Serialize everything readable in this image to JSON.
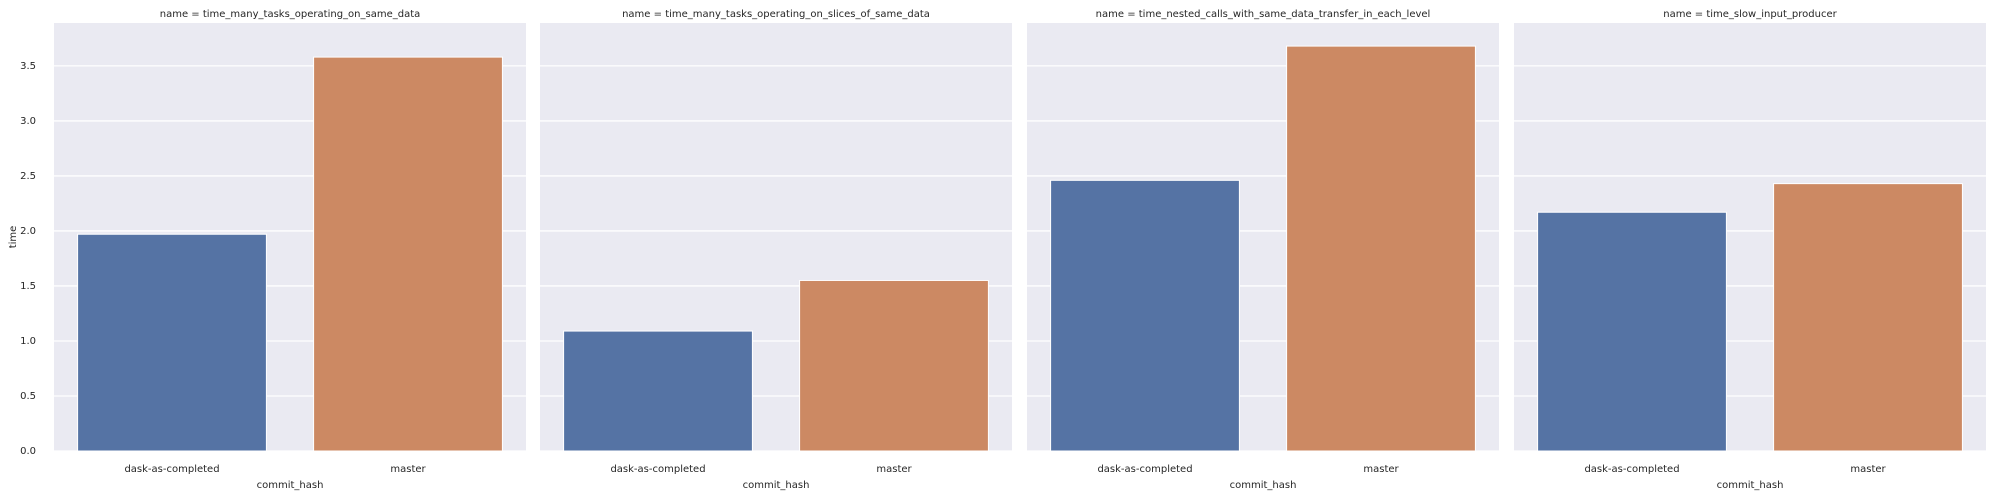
{
  "chart_data": [
    {
      "type": "bar",
      "title": "name = time_many_tasks_operating_on_same_data",
      "categories": [
        "dask-as-completed",
        "master"
      ],
      "values": [
        1.97,
        3.58
      ],
      "colors": [
        "#5573a4",
        "#cc8963"
      ],
      "x_label": "commit_hash",
      "y_label": "time",
      "ylim": [
        0,
        3.89
      ],
      "yticks": [
        {
          "value": 0,
          "label": "0.0"
        },
        {
          "value": 0.5,
          "label": "0.5"
        },
        {
          "value": 1,
          "label": "1.0"
        },
        {
          "value": 1.5,
          "label": "1.5"
        },
        {
          "value": 2,
          "label": "2.0"
        },
        {
          "value": 2.5,
          "label": "2.5"
        },
        {
          "value": 3,
          "label": "3.0"
        },
        {
          "value": 3.5,
          "label": "3.5"
        }
      ],
      "grid": true
    },
    {
      "type": "bar",
      "title": "name = time_many_tasks_operating_on_slices_of_same_data",
      "categories": [
        "dask-as-completed",
        "master"
      ],
      "values": [
        1.09,
        1.55
      ],
      "colors": [
        "#5573a4",
        "#cc8963"
      ],
      "x_label": "commit_hash"
    },
    {
      "type": "bar",
      "title": "name = time_nested_calls_with_same_data_transfer_in_each_level",
      "categories": [
        "dask-as-completed",
        "master"
      ],
      "values": [
        2.46,
        3.68
      ],
      "colors": [
        "#5573a4",
        "#cc8963"
      ],
      "x_label": "commit_hash"
    },
    {
      "type": "bar",
      "title": "name = time_slow_input_producer",
      "categories": [
        "dask-as-completed",
        "master"
      ],
      "values": [
        2.17,
        2.43
      ],
      "colors": [
        "#5573a4",
        "#cc8963"
      ],
      "x_label": "commit_hash"
    }
  ]
}
